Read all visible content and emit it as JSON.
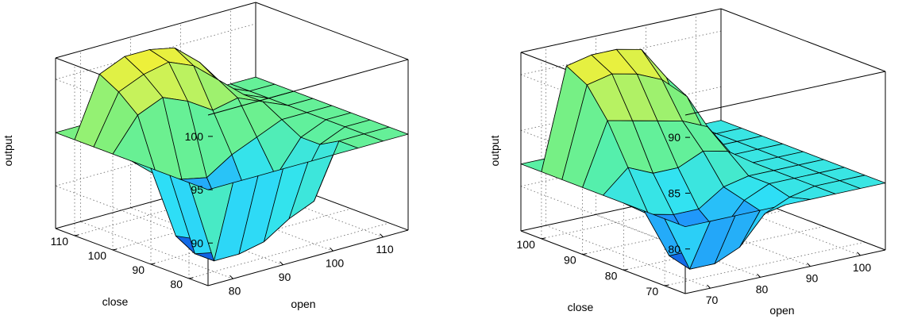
{
  "chart_data": [
    {
      "type": "surface",
      "xlabel": "open",
      "ylabel": "close",
      "zlabel": "output",
      "x_ticks": [
        "80",
        "90",
        "100",
        "110"
      ],
      "y_ticks": [
        "80",
        "90",
        "100",
        "110"
      ],
      "z_ticks": [
        "90",
        "95",
        "100"
      ],
      "xlim": [
        75,
        115
      ],
      "ylim": [
        75,
        115
      ],
      "zlim": [
        86,
        102
      ],
      "grid": true,
      "colormap": [
        "#0a4fd8",
        "#1e8dfa",
        "#2fe1f6",
        "#57f0a8",
        "#7cf07e",
        "#c8f25a",
        "#ffef2b"
      ],
      "surface": {
        "x": [
          75,
          80,
          85,
          90,
          95,
          100,
          105,
          110,
          115
        ],
        "y": [
          75,
          80,
          85,
          90,
          95,
          100,
          105,
          110,
          115
        ],
        "z": [
          [
            95,
            95,
            95,
            95,
            95,
            95,
            95,
            95,
            95
          ],
          [
            95,
            87,
            87,
            87.5,
            89,
            90,
            95,
            95,
            95
          ],
          [
            95,
            87,
            86.5,
            87,
            88.5,
            90,
            94,
            95,
            95
          ],
          [
            95,
            88,
            87,
            88,
            89,
            91,
            94,
            95,
            95
          ],
          [
            95,
            93,
            92,
            91.5,
            93,
            94,
            95,
            95,
            95
          ],
          [
            95,
            98,
            99,
            98,
            96.5,
            97,
            96,
            95,
            95
          ],
          [
            95,
            99.5,
            100.5,
            101,
            100,
            98,
            96,
            95,
            95
          ],
          [
            95,
            100.5,
            101.5,
            101.5,
            101,
            99,
            96,
            95,
            95
          ],
          [
            95,
            95,
            95,
            95,
            95,
            95,
            95,
            95,
            95
          ]
        ]
      }
    },
    {
      "type": "surface",
      "xlabel": "open",
      "ylabel": "close",
      "zlabel": "output",
      "x_ticks": [
        "70",
        "80",
        "90",
        "100"
      ],
      "y_ticks": [
        "70",
        "80",
        "90",
        "100"
      ],
      "z_ticks": [
        "80",
        "85",
        "90"
      ],
      "xlim": [
        65,
        105
      ],
      "ylim": [
        65,
        105
      ],
      "zlim": [
        76,
        92
      ],
      "grid": true,
      "colormap": [
        "#0a4fd8",
        "#1e8dfa",
        "#2fe1f6",
        "#57f0a8",
        "#7cf07e",
        "#c8f25a",
        "#ffef2b"
      ],
      "surface": {
        "x": [
          65,
          70,
          75,
          80,
          85,
          90,
          95,
          100,
          105
        ],
        "y": [
          65,
          70,
          75,
          80,
          85,
          90,
          95,
          100,
          105
        ],
        "z": [
          [
            82,
            82,
            82,
            82,
            82,
            82,
            82,
            82,
            82
          ],
          [
            82,
            77,
            77,
            78,
            80.5,
            81.5,
            82,
            82,
            82
          ],
          [
            82,
            77.5,
            77.5,
            78.5,
            81,
            82,
            82,
            82,
            82
          ],
          [
            82,
            80.5,
            80,
            80,
            81.5,
            82,
            82,
            82,
            82
          ],
          [
            82,
            84,
            83,
            83,
            84,
            83.5,
            82,
            82,
            82
          ],
          [
            82,
            87.5,
            87,
            86.5,
            86,
            85,
            82,
            82,
            82
          ],
          [
            82,
            90,
            90.5,
            90,
            89,
            87,
            82,
            82,
            82
          ],
          [
            82,
            91,
            91.5,
            91.5,
            91,
            88,
            82,
            82,
            82
          ],
          [
            82,
            82,
            82,
            82,
            82,
            82,
            82,
            82,
            82
          ]
        ]
      }
    }
  ]
}
